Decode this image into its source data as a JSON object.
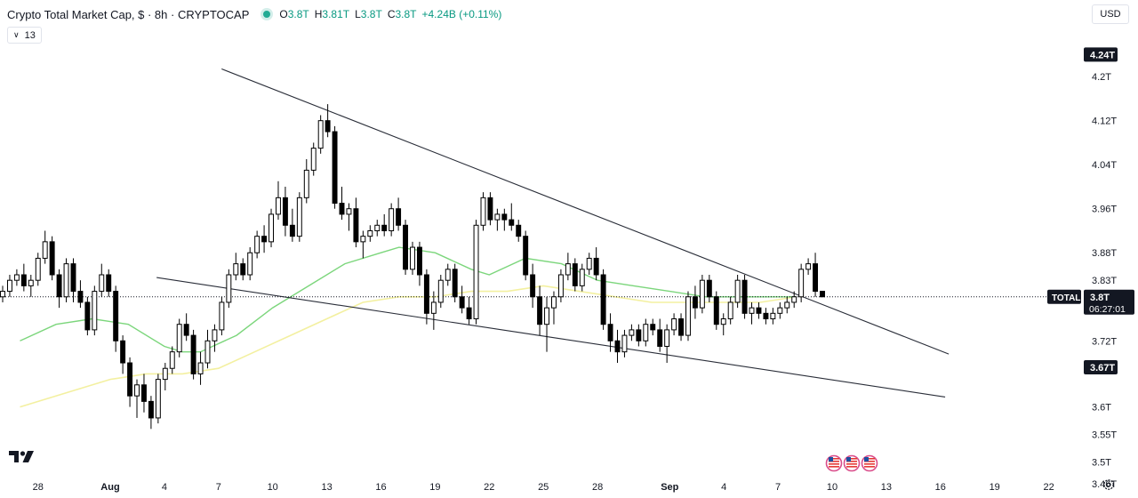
{
  "header": {
    "title": "Crypto Total Market Cap, $ · 8h · CRYPTOCAP",
    "ohlc": [
      {
        "label": "O",
        "value": "3.8T"
      },
      {
        "label": "H",
        "value": "3.81T"
      },
      {
        "label": "L",
        "value": "3.8T"
      },
      {
        "label": "C",
        "value": "3.8T"
      }
    ],
    "change": "+4.24B (+0.11%)",
    "indicator_count": "13",
    "currency": "USD"
  },
  "colors": {
    "up": "#000000",
    "down": "#000000",
    "ma_fast": "#7cd67c",
    "ma_slow": "#f3f0a0",
    "trendline": "#2a2e39",
    "axis_text": "#131722"
  },
  "icons": {
    "logo": "tradingview-logo-icon",
    "events": "us-flag-event-icon",
    "settings": "gear-icon"
  },
  "chart_data": {
    "type": "candlestick",
    "ylim": [
      3.44,
      4.28
    ],
    "y_ticks": [
      {
        "label": "4.2T",
        "value": 4.2
      },
      {
        "label": "4.12T",
        "value": 4.12
      },
      {
        "label": "4.04T",
        "value": 4.04
      },
      {
        "label": "3.96T",
        "value": 3.96
      },
      {
        "label": "3.88T",
        "value": 3.88
      },
      {
        "label": "3.83T",
        "value": 3.83
      },
      {
        "label": "3.72T",
        "value": 3.72
      },
      {
        "label": "3.6T",
        "value": 3.6
      },
      {
        "label": "3.55T",
        "value": 3.55
      },
      {
        "label": "3.5T",
        "value": 3.5
      },
      {
        "label": "3.46T",
        "value": 3.46
      }
    ],
    "x_ticks": [
      {
        "label": "28",
        "day": -4
      },
      {
        "label": "Aug",
        "day": 0
      },
      {
        "label": "4",
        "day": 3
      },
      {
        "label": "7",
        "day": 6
      },
      {
        "label": "10",
        "day": 9
      },
      {
        "label": "13",
        "day": 12
      },
      {
        "label": "16",
        "day": 15
      },
      {
        "label": "19",
        "day": 18
      },
      {
        "label": "22",
        "day": 21
      },
      {
        "label": "25",
        "day": 24
      },
      {
        "label": "28",
        "day": 27
      },
      {
        "label": "Sep",
        "day": 31
      },
      {
        "label": "4",
        "day": 34
      },
      {
        "label": "7",
        "day": 37
      },
      {
        "label": "10",
        "day": 40
      },
      {
        "label": "13",
        "day": 43
      },
      {
        "label": "16",
        "day": 46
      },
      {
        "label": "19",
        "day": 49
      },
      {
        "label": "22",
        "day": 52
      }
    ],
    "price_labels": [
      {
        "label": "4.24T",
        "value": 4.24,
        "style": "dark"
      },
      {
        "label": "3.67T",
        "value": 3.672,
        "style": "dark"
      }
    ],
    "current": {
      "label": "TOTAL",
      "value": 3.8,
      "price": "3.8T",
      "countdown": "06:27:01"
    },
    "candles": [
      [
        3.8,
        3.82,
        3.79,
        3.81
      ],
      [
        3.81,
        3.84,
        3.8,
        3.83
      ],
      [
        3.83,
        3.85,
        3.82,
        3.84
      ],
      [
        3.84,
        3.86,
        3.81,
        3.82
      ],
      [
        3.82,
        3.84,
        3.8,
        3.83
      ],
      [
        3.83,
        3.88,
        3.82,
        3.87
      ],
      [
        3.87,
        3.92,
        3.86,
        3.9
      ],
      [
        3.9,
        3.91,
        3.83,
        3.84
      ],
      [
        3.84,
        3.85,
        3.78,
        3.8
      ],
      [
        3.8,
        3.87,
        3.79,
        3.86
      ],
      [
        3.86,
        3.87,
        3.79,
        3.81
      ],
      [
        3.81,
        3.83,
        3.78,
        3.79
      ],
      [
        3.79,
        3.8,
        3.73,
        3.74
      ],
      [
        3.74,
        3.82,
        3.73,
        3.81
      ],
      [
        3.81,
        3.86,
        3.8,
        3.84
      ],
      [
        3.84,
        3.85,
        3.8,
        3.81
      ],
      [
        3.81,
        3.82,
        3.7,
        3.72
      ],
      [
        3.72,
        3.73,
        3.66,
        3.68
      ],
      [
        3.68,
        3.69,
        3.6,
        3.62
      ],
      [
        3.62,
        3.65,
        3.58,
        3.64
      ],
      [
        3.64,
        3.66,
        3.59,
        3.61
      ],
      [
        3.61,
        3.62,
        3.56,
        3.58
      ],
      [
        3.58,
        3.66,
        3.57,
        3.65
      ],
      [
        3.65,
        3.68,
        3.63,
        3.67
      ],
      [
        3.67,
        3.71,
        3.66,
        3.7
      ],
      [
        3.7,
        3.76,
        3.69,
        3.75
      ],
      [
        3.75,
        3.77,
        3.72,
        3.73
      ],
      [
        3.73,
        3.74,
        3.65,
        3.66
      ],
      [
        3.66,
        3.7,
        3.64,
        3.68
      ],
      [
        3.68,
        3.74,
        3.67,
        3.72
      ],
      [
        3.72,
        3.75,
        3.7,
        3.74
      ],
      [
        3.74,
        3.8,
        3.73,
        3.79
      ],
      [
        3.79,
        3.85,
        3.78,
        3.84
      ],
      [
        3.84,
        3.88,
        3.83,
        3.86
      ],
      [
        3.86,
        3.87,
        3.83,
        3.84
      ],
      [
        3.84,
        3.89,
        3.83,
        3.88
      ],
      [
        3.88,
        3.92,
        3.87,
        3.91
      ],
      [
        3.91,
        3.93,
        3.88,
        3.9
      ],
      [
        3.9,
        3.96,
        3.89,
        3.95
      ],
      [
        3.95,
        4.01,
        3.94,
        3.98
      ],
      [
        3.98,
        4.0,
        3.91,
        3.93
      ],
      [
        3.93,
        3.96,
        3.9,
        3.91
      ],
      [
        3.91,
        3.99,
        3.9,
        3.98
      ],
      [
        3.98,
        4.05,
        3.97,
        4.03
      ],
      [
        4.03,
        4.08,
        4.02,
        4.07
      ],
      [
        4.07,
        4.13,
        4.06,
        4.12
      ],
      [
        4.12,
        4.15,
        4.09,
        4.1
      ],
      [
        4.1,
        4.11,
        3.96,
        3.97
      ],
      [
        3.97,
        4.0,
        3.94,
        3.95
      ],
      [
        3.95,
        3.97,
        3.92,
        3.96
      ],
      [
        3.96,
        3.98,
        3.89,
        3.9
      ],
      [
        3.9,
        3.92,
        3.87,
        3.91
      ],
      [
        3.91,
        3.93,
        3.9,
        3.92
      ],
      [
        3.92,
        3.94,
        3.91,
        3.93
      ],
      [
        3.93,
        3.95,
        3.91,
        3.92
      ],
      [
        3.92,
        3.97,
        3.91,
        3.96
      ],
      [
        3.96,
        3.98,
        3.92,
        3.93
      ],
      [
        3.93,
        3.94,
        3.84,
        3.85
      ],
      [
        3.85,
        3.9,
        3.84,
        3.89
      ],
      [
        3.89,
        3.9,
        3.82,
        3.84
      ],
      [
        3.84,
        3.85,
        3.75,
        3.77
      ],
      [
        3.77,
        3.81,
        3.74,
        3.79
      ],
      [
        3.79,
        3.84,
        3.78,
        3.83
      ],
      [
        3.83,
        3.86,
        3.82,
        3.85
      ],
      [
        3.85,
        3.86,
        3.79,
        3.8
      ],
      [
        3.8,
        3.82,
        3.77,
        3.78
      ],
      [
        3.78,
        3.8,
        3.75,
        3.76
      ],
      [
        3.76,
        3.94,
        3.75,
        3.93
      ],
      [
        3.93,
        3.99,
        3.92,
        3.98
      ],
      [
        3.98,
        3.99,
        3.93,
        3.94
      ],
      [
        3.94,
        3.96,
        3.92,
        3.95
      ],
      [
        3.95,
        3.96,
        3.92,
        3.94
      ],
      [
        3.94,
        3.97,
        3.92,
        3.93
      ],
      [
        3.93,
        3.94,
        3.9,
        3.91
      ],
      [
        3.91,
        3.92,
        3.83,
        3.84
      ],
      [
        3.84,
        3.86,
        3.78,
        3.8
      ],
      [
        3.8,
        3.82,
        3.73,
        3.75
      ],
      [
        3.75,
        3.8,
        3.7,
        3.78
      ],
      [
        3.78,
        3.81,
        3.75,
        3.8
      ],
      [
        3.8,
        3.85,
        3.79,
        3.84
      ],
      [
        3.84,
        3.88,
        3.83,
        3.86
      ],
      [
        3.86,
        3.87,
        3.81,
        3.82
      ],
      [
        3.82,
        3.86,
        3.81,
        3.85
      ],
      [
        3.85,
        3.88,
        3.84,
        3.87
      ],
      [
        3.87,
        3.89,
        3.83,
        3.84
      ],
      [
        3.84,
        3.85,
        3.74,
        3.75
      ],
      [
        3.75,
        3.77,
        3.7,
        3.72
      ],
      [
        3.72,
        3.74,
        3.68,
        3.7
      ],
      [
        3.7,
        3.74,
        3.69,
        3.73
      ],
      [
        3.73,
        3.75,
        3.72,
        3.74
      ],
      [
        3.74,
        3.75,
        3.71,
        3.72
      ],
      [
        3.72,
        3.76,
        3.71,
        3.75
      ],
      [
        3.75,
        3.76,
        3.73,
        3.74
      ],
      [
        3.74,
        3.76,
        3.7,
        3.71
      ],
      [
        3.71,
        3.75,
        3.68,
        3.74
      ],
      [
        3.74,
        3.77,
        3.73,
        3.76
      ],
      [
        3.76,
        3.77,
        3.72,
        3.73
      ],
      [
        3.73,
        3.81,
        3.72,
        3.8
      ],
      [
        3.8,
        3.82,
        3.76,
        3.78
      ],
      [
        3.78,
        3.84,
        3.77,
        3.83
      ],
      [
        3.83,
        3.84,
        3.79,
        3.8
      ],
      [
        3.8,
        3.81,
        3.74,
        3.75
      ],
      [
        3.75,
        3.77,
        3.73,
        3.76
      ],
      [
        3.76,
        3.8,
        3.75,
        3.79
      ],
      [
        3.79,
        3.84,
        3.78,
        3.83
      ],
      [
        3.83,
        3.84,
        3.76,
        3.77
      ],
      [
        3.77,
        3.79,
        3.75,
        3.78
      ],
      [
        3.78,
        3.79,
        3.76,
        3.77
      ],
      [
        3.77,
        3.78,
        3.75,
        3.76
      ],
      [
        3.76,
        3.78,
        3.75,
        3.77
      ],
      [
        3.77,
        3.79,
        3.76,
        3.78
      ],
      [
        3.78,
        3.8,
        3.77,
        3.79
      ],
      [
        3.79,
        3.81,
        3.78,
        3.8
      ],
      [
        3.8,
        3.86,
        3.79,
        3.85
      ],
      [
        3.85,
        3.87,
        3.84,
        3.86
      ],
      [
        3.86,
        3.88,
        3.8,
        3.81
      ],
      [
        3.81,
        3.81,
        3.8,
        3.8
      ]
    ],
    "ma_fast": [
      [
        -5,
        3.72
      ],
      [
        -3,
        3.75
      ],
      [
        -1,
        3.76
      ],
      [
        1,
        3.75
      ],
      [
        3,
        3.71
      ],
      [
        4,
        3.7
      ],
      [
        5,
        3.7
      ],
      [
        7,
        3.73
      ],
      [
        9,
        3.78
      ],
      [
        11,
        3.82
      ],
      [
        13,
        3.86
      ],
      [
        15,
        3.88
      ],
      [
        16,
        3.89
      ],
      [
        18,
        3.88
      ],
      [
        20,
        3.85
      ],
      [
        21,
        3.84
      ],
      [
        23,
        3.87
      ],
      [
        25,
        3.86
      ],
      [
        27,
        3.83
      ],
      [
        29,
        3.82
      ],
      [
        31,
        3.81
      ],
      [
        33,
        3.8
      ],
      [
        35,
        3.8
      ],
      [
        37,
        3.8
      ],
      [
        38,
        3.8
      ]
    ],
    "ma_slow": [
      [
        -5,
        3.6
      ],
      [
        -2,
        3.63
      ],
      [
        0,
        3.65
      ],
      [
        2,
        3.66
      ],
      [
        4,
        3.66
      ],
      [
        6,
        3.67
      ],
      [
        8,
        3.7
      ],
      [
        10,
        3.73
      ],
      [
        12,
        3.76
      ],
      [
        14,
        3.79
      ],
      [
        16,
        3.8
      ],
      [
        18,
        3.8
      ],
      [
        20,
        3.81
      ],
      [
        22,
        3.81
      ],
      [
        24,
        3.82
      ],
      [
        26,
        3.81
      ],
      [
        28,
        3.8
      ],
      [
        30,
        3.79
      ],
      [
        32,
        3.79
      ],
      [
        34,
        3.79
      ],
      [
        36,
        3.79
      ],
      [
        38,
        3.8
      ]
    ],
    "trendlines": [
      {
        "x1": 6.17,
        "y1": 4.214,
        "x2": 46.46,
        "y2": 3.696
      },
      {
        "x1": 2.57,
        "y1": 3.835,
        "x2": 46.26,
        "y2": 3.618
      }
    ]
  }
}
